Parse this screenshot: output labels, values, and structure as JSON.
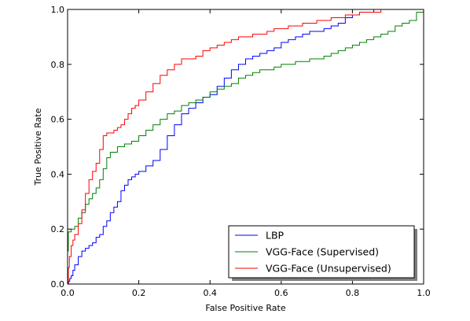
{
  "chart_data": {
    "type": "line",
    "xlabel": "False Positive Rate",
    "ylabel": "True Positive Rate",
    "xlim": [
      0,
      1
    ],
    "ylim": [
      0,
      1
    ],
    "xticks": [
      "0.0",
      "0.2",
      "0.4",
      "0.6",
      "0.8",
      "1.0"
    ],
    "yticks": [
      "0.0",
      "0.2",
      "0.4",
      "0.6",
      "0.8",
      "1.0"
    ],
    "grid": false,
    "legend_position": "bottom-right",
    "series": [
      {
        "name": "LBP",
        "color": "#0000ff",
        "x": [
          0.0,
          0.003,
          0.006,
          0.01,
          0.015,
          0.02,
          0.03,
          0.04,
          0.05,
          0.06,
          0.07,
          0.08,
          0.09,
          0.1,
          0.11,
          0.12,
          0.13,
          0.14,
          0.15,
          0.16,
          0.17,
          0.18,
          0.19,
          0.2,
          0.22,
          0.24,
          0.26,
          0.28,
          0.3,
          0.32,
          0.34,
          0.36,
          0.38,
          0.4,
          0.42,
          0.44,
          0.46,
          0.48,
          0.5,
          0.52,
          0.54,
          0.56,
          0.58,
          0.6,
          0.62,
          0.64,
          0.66,
          0.68,
          0.7,
          0.72,
          0.74,
          0.76,
          0.78,
          0.8,
          0.82,
          0.84,
          0.86,
          0.88,
          0.9,
          0.92,
          0.95,
          1.0
        ],
        "y": [
          0.0,
          0.01,
          0.02,
          0.03,
          0.05,
          0.07,
          0.1,
          0.12,
          0.13,
          0.14,
          0.15,
          0.17,
          0.18,
          0.21,
          0.23,
          0.26,
          0.28,
          0.3,
          0.34,
          0.36,
          0.38,
          0.39,
          0.4,
          0.41,
          0.43,
          0.45,
          0.49,
          0.54,
          0.58,
          0.62,
          0.64,
          0.66,
          0.68,
          0.69,
          0.72,
          0.75,
          0.78,
          0.8,
          0.82,
          0.83,
          0.84,
          0.85,
          0.86,
          0.88,
          0.89,
          0.9,
          0.91,
          0.92,
          0.92,
          0.93,
          0.94,
          0.95,
          0.97,
          0.98,
          0.99,
          0.99,
          1.0,
          1.0,
          1.0,
          1.0,
          1.0,
          1.0
        ]
      },
      {
        "name": "VGG-Face (Supervised)",
        "color": "#008000",
        "x": [
          0.0,
          0.002,
          0.005,
          0.01,
          0.02,
          0.03,
          0.04,
          0.05,
          0.06,
          0.07,
          0.08,
          0.09,
          0.1,
          0.11,
          0.12,
          0.14,
          0.16,
          0.18,
          0.2,
          0.22,
          0.24,
          0.26,
          0.28,
          0.3,
          0.32,
          0.34,
          0.36,
          0.38,
          0.4,
          0.42,
          0.44,
          0.46,
          0.48,
          0.5,
          0.52,
          0.54,
          0.56,
          0.58,
          0.6,
          0.62,
          0.64,
          0.66,
          0.68,
          0.7,
          0.72,
          0.74,
          0.76,
          0.78,
          0.8,
          0.82,
          0.84,
          0.86,
          0.88,
          0.9,
          0.92,
          0.94,
          0.96,
          0.98,
          1.0
        ],
        "y": [
          0.12,
          0.19,
          0.19,
          0.2,
          0.21,
          0.24,
          0.26,
          0.29,
          0.31,
          0.33,
          0.35,
          0.38,
          0.42,
          0.46,
          0.48,
          0.5,
          0.51,
          0.52,
          0.54,
          0.56,
          0.58,
          0.6,
          0.62,
          0.63,
          0.65,
          0.66,
          0.67,
          0.68,
          0.7,
          0.71,
          0.72,
          0.73,
          0.75,
          0.76,
          0.77,
          0.78,
          0.78,
          0.79,
          0.8,
          0.8,
          0.81,
          0.81,
          0.82,
          0.82,
          0.83,
          0.84,
          0.85,
          0.86,
          0.87,
          0.88,
          0.89,
          0.9,
          0.91,
          0.92,
          0.94,
          0.95,
          0.96,
          0.99,
          1.0
        ]
      },
      {
        "name": "VGG-Face (Unsupervised)",
        "color": "#ff0000",
        "x": [
          0.0,
          0.002,
          0.005,
          0.01,
          0.015,
          0.02,
          0.03,
          0.04,
          0.05,
          0.06,
          0.07,
          0.08,
          0.09,
          0.1,
          0.11,
          0.12,
          0.13,
          0.14,
          0.15,
          0.16,
          0.17,
          0.18,
          0.19,
          0.2,
          0.22,
          0.24,
          0.26,
          0.28,
          0.3,
          0.32,
          0.34,
          0.36,
          0.38,
          0.4,
          0.42,
          0.44,
          0.46,
          0.48,
          0.5,
          0.52,
          0.54,
          0.56,
          0.58,
          0.6,
          0.62,
          0.64,
          0.66,
          0.68,
          0.7,
          0.72,
          0.74,
          0.76,
          0.78,
          0.8,
          0.82,
          0.84,
          0.86,
          0.88,
          0.9,
          0.92,
          0.95,
          1.0
        ],
        "y": [
          0.0,
          0.06,
          0.1,
          0.14,
          0.16,
          0.18,
          0.22,
          0.27,
          0.33,
          0.38,
          0.41,
          0.44,
          0.49,
          0.54,
          0.55,
          0.55,
          0.56,
          0.57,
          0.58,
          0.6,
          0.62,
          0.64,
          0.65,
          0.67,
          0.7,
          0.73,
          0.76,
          0.78,
          0.8,
          0.82,
          0.82,
          0.83,
          0.85,
          0.86,
          0.87,
          0.88,
          0.89,
          0.9,
          0.9,
          0.91,
          0.91,
          0.92,
          0.93,
          0.93,
          0.94,
          0.94,
          0.95,
          0.95,
          0.96,
          0.96,
          0.97,
          0.97,
          0.98,
          0.98,
          0.99,
          0.99,
          0.99,
          1.0,
          1.0,
          1.0,
          1.0,
          1.0
        ]
      }
    ]
  }
}
